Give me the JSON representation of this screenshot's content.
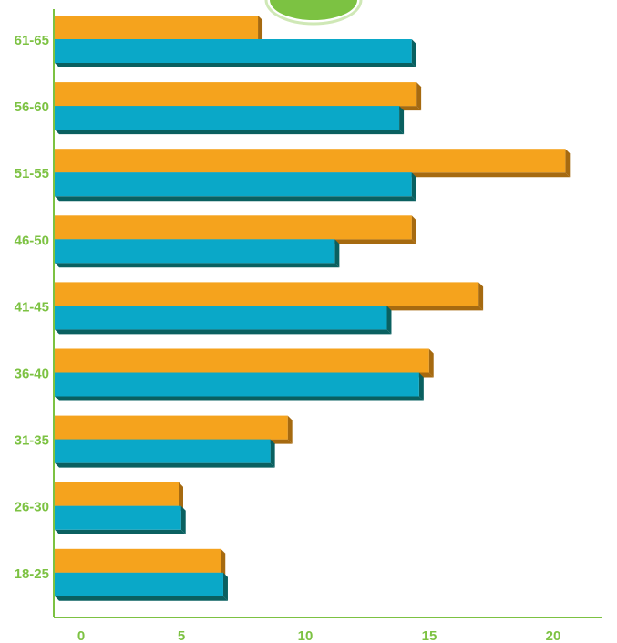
{
  "chart_data": {
    "type": "bar",
    "orientation": "horizontal",
    "categories": [
      "18-25",
      "26-30",
      "31-35",
      "36-40",
      "41-45",
      "46-50",
      "51-55",
      "56-60",
      "61-65"
    ],
    "series": [
      {
        "values": [
          6.8,
          5.1,
          8.7,
          14.7,
          13.4,
          11.3,
          14.4,
          13.9,
          14.4
        ]
      },
      {
        "values": [
          6.7,
          5.0,
          9.4,
          15.1,
          17.1,
          14.4,
          20.6,
          14.6,
          8.2
        ]
      }
    ],
    "x_ticks": [
      "0",
      "5",
      "10",
      "15",
      "20"
    ],
    "xlim": [
      0,
      20
    ],
    "grid": false,
    "colors": {
      "series_top": "#f5a31d",
      "series_top_shadow": "#a66a10",
      "series_bottom": "#0aa8c8",
      "series_bottom_shadow": "#0a6060",
      "axis": "#7cc242",
      "tick_label": "#7cc242",
      "badge": "#7cc242"
    }
  }
}
